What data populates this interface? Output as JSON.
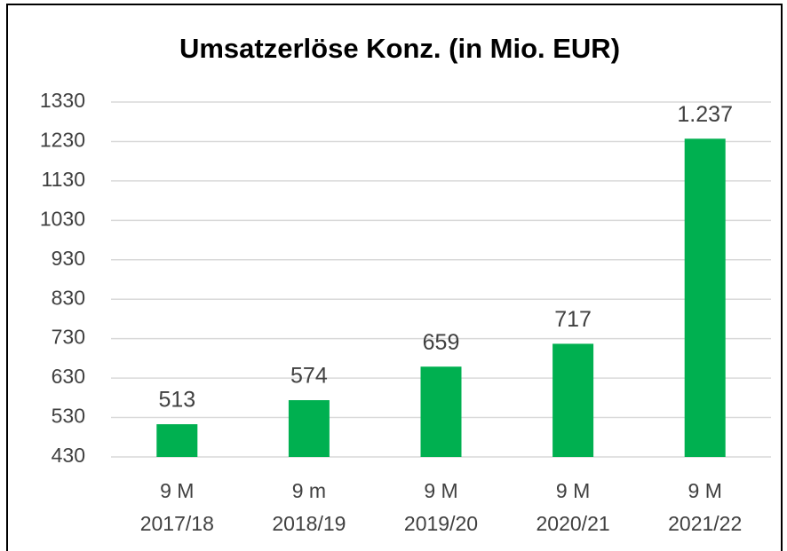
{
  "chart_data": {
    "type": "bar",
    "title": "Umsatzerlöse Konz. (in Mio. EUR)",
    "categories": [
      "9 M\n2017/18",
      "9 m\n2018/19",
      "9 M\n2019/20",
      "9 M\n2020/21",
      "9 M\n2021/22"
    ],
    "values": [
      513,
      574,
      659,
      717,
      1237
    ],
    "value_labels": [
      "513",
      "574",
      "659",
      "717",
      "1.237"
    ],
    "color": "#00b050",
    "ylim": [
      430,
      1330
    ],
    "yticks": [
      430,
      530,
      630,
      730,
      830,
      930,
      1030,
      1130,
      1230,
      1330
    ],
    "grid": true
  }
}
